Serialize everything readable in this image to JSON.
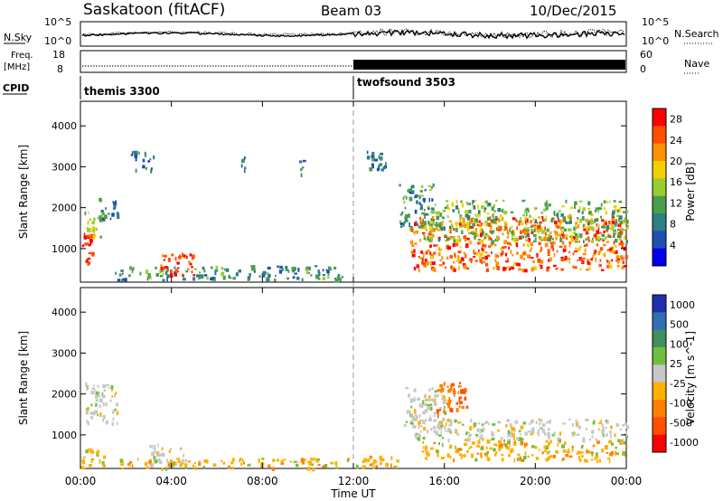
{
  "header": {
    "station": "Saskatoon (fitACF)",
    "beam": "Beam 03",
    "date": "10/Dec/2015"
  },
  "panel_labels": {
    "nsky": "N.Sky",
    "nsearch": "N.Search",
    "freq_line1": "Freq.",
    "freq_line2": "[MHz]",
    "nave": "Nave",
    "cpid": "CPID",
    "nsky_top": "10^5",
    "nsky_bottom": "10^0",
    "nsearch_top": "10^5",
    "nsearch_bottom": "10^0",
    "freq_top": "18",
    "freq_bottom": "8",
    "nave_top": "60",
    "nave_bottom": "0"
  },
  "cpid_modes": [
    {
      "name": "themis 3300",
      "start_hour": 0
    },
    {
      "name": "twofsound 3503",
      "start_hour": 12
    }
  ],
  "colors": {
    "power": [
      "#0000ee",
      "#1f4fb0",
      "#2e7f7f",
      "#4c9e4c",
      "#9acd32",
      "#f0d000",
      "#ff9000",
      "#ff5000",
      "#ff0000"
    ],
    "velocity": [
      "#1e2fb0",
      "#2f6fb8",
      "#3f8f5f",
      "#6fbf3f",
      "#c8c8c8",
      "#ffb000",
      "#ff8000",
      "#ff5000",
      "#ff0000"
    ],
    "dashed_marker": "#999999"
  },
  "chart_data": [
    {
      "type": "heatmap",
      "title": "Power",
      "xlabel": "Time UT",
      "ylabel": "Slant Range [km]",
      "x_ticks": [
        "00:00",
        "04:00",
        "08:00",
        "12:00",
        "16:00",
        "20:00",
        "00:00"
      ],
      "xlim_hours": [
        0,
        24
      ],
      "y_ticks": [
        1000,
        2000,
        3000,
        4000
      ],
      "ylim": [
        180,
        4600
      ],
      "colorbar_label": "Power [dB]",
      "colorbar_ticks": [
        4,
        8,
        12,
        16,
        20,
        24,
        28
      ],
      "colorbar_range": [
        0,
        30
      ],
      "regions": [
        {
          "t": [
            0.0,
            0.6
          ],
          "r": [
            650,
            1500
          ],
          "level": 28
        },
        {
          "t": [
            0.1,
            0.9
          ],
          "r": [
            1300,
            2000
          ],
          "level": 16
        },
        {
          "t": [
            0.8,
            1.6
          ],
          "r": [
            1700,
            2300
          ],
          "level": 8
        },
        {
          "t": [
            1.5,
            11.5
          ],
          "r": [
            250,
            600
          ],
          "level": 10
        },
        {
          "t": [
            3.5,
            5.0
          ],
          "r": [
            350,
            900
          ],
          "level": 26
        },
        {
          "t": [
            2.2,
            3.2
          ],
          "r": [
            2900,
            3400
          ],
          "level": 6
        },
        {
          "t": [
            7.0,
            7.2
          ],
          "r": [
            2900,
            3300
          ],
          "level": 6
        },
        {
          "t": [
            9.6,
            9.8
          ],
          "r": [
            2800,
            3200
          ],
          "level": 7
        },
        {
          "t": [
            12.3,
            13.4
          ],
          "r": [
            2900,
            3400
          ],
          "level": 7
        },
        {
          "t": [
            14.0,
            15.5
          ],
          "r": [
            1500,
            2600
          ],
          "level": 10
        },
        {
          "t": [
            14.5,
            24.0
          ],
          "r": [
            500,
            1800
          ],
          "level": 24
        },
        {
          "t": [
            15.0,
            24.0
          ],
          "r": [
            1200,
            2200
          ],
          "level": 14
        }
      ],
      "gap_hours": [
        [
          5.2,
          5.7
        ],
        [
          6.6,
          6.9
        ]
      ]
    },
    {
      "type": "heatmap",
      "title": "Velocity",
      "xlabel": "Time UT",
      "ylabel": "Slant Range [km]",
      "x_ticks": [
        "00:00",
        "04:00",
        "08:00",
        "12:00",
        "16:00",
        "20:00",
        "00:00"
      ],
      "xlim_hours": [
        0,
        24
      ],
      "y_ticks": [
        1000,
        2000,
        3000,
        4000
      ],
      "ylim": [
        180,
        4600
      ],
      "colorbar_label": "Velocity [m s^-1]",
      "colorbar_ticks": [
        1000,
        500,
        100,
        25,
        -25,
        -100,
        -500,
        -1000
      ],
      "regions": [
        {
          "t": [
            0.0,
            1.0
          ],
          "r": [
            200,
            700
          ],
          "level": -100
        },
        {
          "t": [
            0.2,
            1.6
          ],
          "r": [
            1300,
            2300
          ],
          "level": 0
        },
        {
          "t": [
            1.5,
            12.0
          ],
          "r": [
            200,
            450
          ],
          "level": -100
        },
        {
          "t": [
            3.0,
            4.6
          ],
          "r": [
            300,
            800
          ],
          "level": 0
        },
        {
          "t": [
            12.0,
            14.0
          ],
          "r": [
            200,
            500
          ],
          "level": -100
        },
        {
          "t": [
            14.2,
            16.0
          ],
          "r": [
            1200,
            2200
          ],
          "level": 0
        },
        {
          "t": [
            14.5,
            24.0
          ],
          "r": [
            900,
            1400
          ],
          "level": 0
        },
        {
          "t": [
            15.0,
            24.0
          ],
          "r": [
            400,
            900
          ],
          "level": -100
        },
        {
          "t": [
            15.5,
            17.0
          ],
          "r": [
            1500,
            2300
          ],
          "level": -500
        }
      ]
    }
  ]
}
